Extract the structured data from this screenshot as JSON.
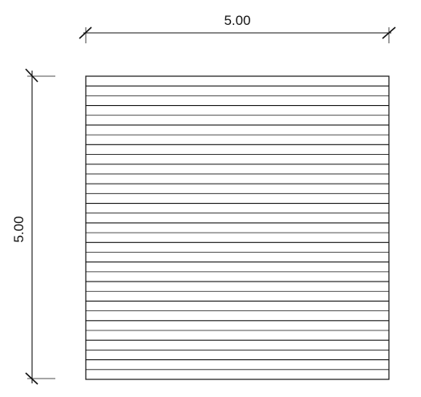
{
  "drawing": {
    "dimensions": {
      "width_label": "5.00",
      "height_label": "5.00"
    },
    "hatch": {
      "orientation": "horizontal",
      "line_count": 31
    }
  }
}
